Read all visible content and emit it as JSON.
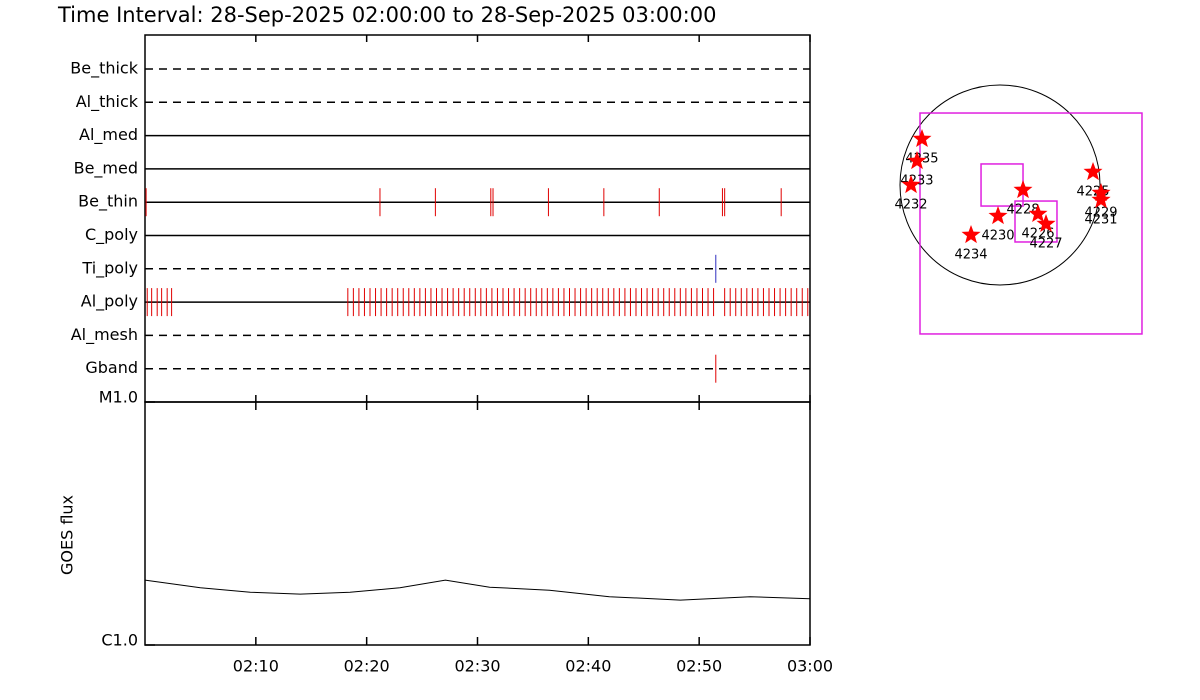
{
  "title": "Time Interval: 28-Sep-2025 02:00:00 to 28-Sep-2025 03:00:00",
  "chart_data": [
    {
      "type": "timeline",
      "xlim": [
        0,
        60
      ],
      "series": [
        {
          "name": "Be_thick",
          "line": "dashed",
          "x": []
        },
        {
          "name": "Al_thick",
          "line": "dashed",
          "x": []
        },
        {
          "name": "Al_med",
          "line": "solid",
          "x": []
        },
        {
          "name": "Be_med",
          "line": "solid",
          "x": []
        },
        {
          "name": "Be_thin",
          "line": "solid",
          "color": "#e00000",
          "x": [
            0.1,
            21.2,
            26.2,
            31.2,
            31.4,
            36.4,
            41.4,
            46.4,
            52.1,
            52.3,
            57.4
          ]
        },
        {
          "name": "C_poly",
          "line": "solid",
          "x": []
        },
        {
          "name": "Ti_poly",
          "line": "dashed",
          "color": "#3030c0",
          "x": [
            51.5
          ]
        },
        {
          "name": "Al_poly",
          "line": "solid",
          "color": "#e00000",
          "x": [
            0.2,
            0.6,
            1.1,
            1.5,
            2.0,
            2.4,
            18.3,
            18.8,
            19.3,
            19.8,
            20.3,
            20.8,
            21.3,
            21.8,
            22.3,
            22.8,
            23.3,
            23.8,
            24.3,
            24.8,
            25.3,
            25.8,
            26.3,
            26.8,
            27.3,
            27.8,
            28.3,
            28.8,
            29.3,
            29.8,
            30.3,
            30.8,
            31.3,
            31.8,
            32.3,
            32.8,
            33.3,
            33.8,
            34.3,
            34.8,
            35.3,
            35.8,
            36.3,
            36.8,
            37.3,
            37.8,
            38.3,
            38.8,
            39.3,
            39.8,
            40.3,
            40.8,
            41.3,
            41.8,
            42.3,
            42.8,
            43.3,
            43.8,
            44.3,
            44.8,
            45.3,
            45.8,
            46.3,
            46.8,
            47.3,
            47.8,
            48.3,
            48.8,
            49.3,
            49.8,
            50.3,
            50.8,
            51.3,
            52.3,
            52.8,
            53.3,
            53.8,
            54.3,
            54.8,
            55.3,
            55.8,
            56.3,
            56.8,
            57.3,
            57.8,
            58.3,
            58.8,
            59.3,
            59.8
          ]
        },
        {
          "name": "Al_mesh",
          "line": "dashed",
          "x": []
        },
        {
          "name": "Gband",
          "line": "dashed",
          "color": "#e00000",
          "x": [
            51.5
          ]
        }
      ]
    },
    {
      "type": "line",
      "y_label": "GOES flux",
      "log_y": true,
      "color": "#000000",
      "xlim": [
        0,
        60
      ],
      "xticks": [
        {
          "value": 10,
          "label": "02:10"
        },
        {
          "value": 20,
          "label": "02:20"
        },
        {
          "value": 30,
          "label": "02:30"
        },
        {
          "value": 40,
          "label": "02:40"
        },
        {
          "value": 50,
          "label": "02:50"
        },
        {
          "value": 60,
          "label": "03:00"
        }
      ],
      "ylim": [
        1e-06,
        1e-05
      ],
      "yticks": [
        {
          "value": 1e-06,
          "label": "C1.0"
        },
        {
          "value": 1e-05,
          "label": "M1.0"
        }
      ],
      "x": [
        0,
        5,
        9.5,
        14,
        18.5,
        23,
        27.1,
        31.1,
        36.5,
        41.9,
        48.3,
        54.6,
        60
      ],
      "values": [
        1.85e-06,
        1.72e-06,
        1.65e-06,
        1.62e-06,
        1.65e-06,
        1.72e-06,
        1.85e-06,
        1.73e-06,
        1.68e-06,
        1.58e-06,
        1.53e-06,
        1.58e-06,
        1.55e-06
      ]
    },
    {
      "type": "map",
      "disk_radius": 960,
      "color": "#ff0000",
      "box_color": "#e020e0",
      "boxes": [
        {
          "x": [
            -768,
            1363
          ],
          "y": [
            -1430,
            691
          ]
        },
        {
          "x": [
            -182,
            221
          ],
          "y": [
            -202,
            202
          ]
        },
        {
          "x": [
            144,
            547
          ],
          "y": [
            -547,
            -154
          ]
        }
      ],
      "points": [
        {
          "name": "4235",
          "x": -749,
          "y": 442
        },
        {
          "name": "4233",
          "x": -797,
          "y": 230
        },
        {
          "name": "4232",
          "x": -854,
          "y": 0
        },
        {
          "name": "4228",
          "x": 221,
          "y": -48
        },
        {
          "name": "4230",
          "x": -19,
          "y": -298
        },
        {
          "name": "4226",
          "x": 365,
          "y": -278
        },
        {
          "name": "4227",
          "x": 442,
          "y": -374
        },
        {
          "name": "4234",
          "x": -278,
          "y": -480
        },
        {
          "name": "4225",
          "x": 893,
          "y": 125
        },
        {
          "name": "4229",
          "x": 970,
          "y": -77
        },
        {
          "name": "4231",
          "x": 970,
          "y": -144
        }
      ]
    }
  ]
}
